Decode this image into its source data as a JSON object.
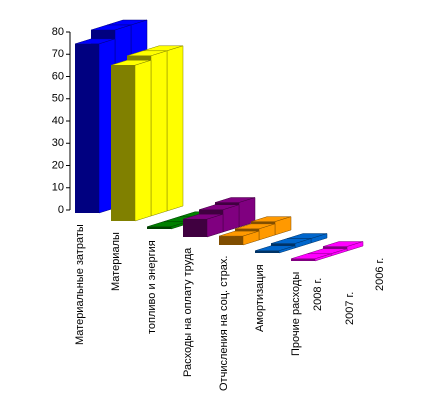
{
  "chart_data": {
    "type": "bar3d",
    "categories": [
      "Материальные затраты",
      "Материалы",
      "топливо и энергия",
      "Расходы на оплату труда",
      "Отчисления на соц. страх.",
      "Амортизация",
      "Прочие расходы"
    ],
    "colors": [
      "#0000ff",
      "#ffff00",
      "#008000",
      "#800080",
      "#ff9900",
      "#0066cc",
      "#ff00ff"
    ],
    "series": [
      {
        "name": "2008 г.",
        "values": [
          76,
          70,
          1,
          8,
          4,
          1,
          1
        ]
      },
      {
        "name": "2007 г.",
        "values": [
          80,
          72,
          1,
          10,
          5,
          2,
          1
        ]
      },
      {
        "name": "2006 г.",
        "values": [
          80,
          72,
          1,
          11,
          6,
          2,
          2
        ]
      }
    ],
    "ylim": [
      0,
      80
    ],
    "yticks": [
      0,
      10,
      20,
      30,
      40,
      50,
      60,
      70,
      80
    ]
  }
}
